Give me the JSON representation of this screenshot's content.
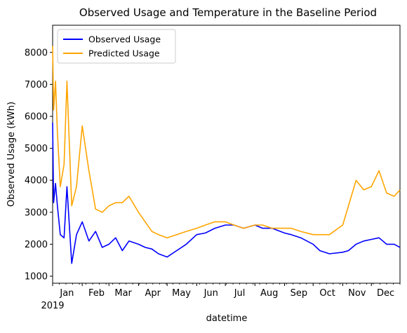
{
  "chart_data": {
    "type": "line",
    "title": "Observed Usage and Temperature in the Baseline Period",
    "xlabel": "datetime",
    "ylabel": "Observed Usage (kWh)",
    "xlim": [
      0,
      364
    ],
    "ylim": [
      780,
      8850
    ],
    "yticks": [
      1000,
      2000,
      3000,
      4000,
      5000,
      6000,
      7000,
      8000
    ],
    "month_ticks": [
      {
        "label": "Jan",
        "day": 0
      },
      {
        "label": "Feb",
        "day": 31
      },
      {
        "label": "Mar",
        "day": 59
      },
      {
        "label": "Apr",
        "day": 90
      },
      {
        "label": "May",
        "day": 120
      },
      {
        "label": "Jun",
        "day": 151
      },
      {
        "label": "Jul",
        "day": 181
      },
      {
        "label": "Aug",
        "day": 212
      },
      {
        "label": "Sep",
        "day": 243
      },
      {
        "label": "Oct",
        "day": 273
      },
      {
        "label": "Nov",
        "day": 304
      },
      {
        "label": "Dec",
        "day": 334
      }
    ],
    "year_label": "2019",
    "x": [
      0,
      1,
      3,
      5,
      8,
      12,
      15,
      20,
      25,
      31,
      38,
      45,
      52,
      59,
      66,
      73,
      80,
      90,
      97,
      104,
      111,
      120,
      130,
      140,
      151,
      160,
      170,
      181,
      190,
      200,
      212,
      220,
      230,
      243,
      250,
      260,
      273,
      280,
      290,
      304,
      310,
      318,
      326,
      334,
      342,
      350,
      358,
      364
    ],
    "series": [
      {
        "name": "Observed Usage",
        "color": "#0000ff",
        "values": [
          5800,
          3300,
          3900,
          3200,
          2300,
          2200,
          3800,
          1400,
          2300,
          2700,
          2100,
          2400,
          1900,
          2000,
          2200,
          1800,
          2100,
          2000,
          1900,
          1850,
          1700,
          1600,
          1800,
          2000,
          2300,
          2350,
          2500,
          2600,
          2600,
          2500,
          2600,
          2500,
          2500,
          2350,
          2300,
          2200,
          2000,
          1800,
          1700,
          1750,
          1800,
          2000,
          2100,
          2150,
          2200,
          2000,
          2000,
          1900
        ]
      },
      {
        "name": "Predicted Usage",
        "color": "#ffa500",
        "values": [
          8200,
          6200,
          7100,
          5500,
          3800,
          4500,
          7100,
          3200,
          3800,
          5700,
          4300,
          3100,
          3000,
          3200,
          3300,
          3300,
          3500,
          3000,
          2700,
          2400,
          2300,
          2200,
          2300,
          2400,
          2500,
          2600,
          2700,
          2700,
          2600,
          2500,
          2600,
          2600,
          2500,
          2500,
          2500,
          2400,
          2300,
          2300,
          2300,
          2600,
          3200,
          4000,
          3700,
          3800,
          4300,
          3600,
          3500,
          3700
        ]
      }
    ],
    "legend": {
      "placement": "upper-left"
    },
    "grid": false
  }
}
